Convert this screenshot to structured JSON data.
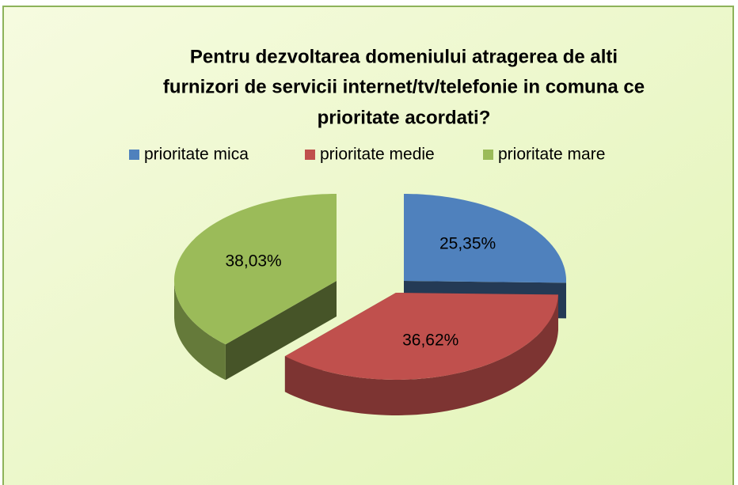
{
  "chart_data": {
    "type": "pie",
    "title": [
      "Pentru dezvoltarea domeniului atragerea de alti",
      "furnizori de servicii internet/tv/telefonie in comuna ce",
      "prioritate acordati?"
    ],
    "categories": [
      "prioritate mica",
      "prioritate medie",
      "prioritate mare"
    ],
    "values": [
      25.35,
      36.62,
      38.03
    ],
    "value_labels": [
      "25,35%",
      "36,62%",
      "38,03%"
    ],
    "colors": [
      "#4f81bd",
      "#c0504d",
      "#9bbb59"
    ],
    "legend": "top"
  }
}
